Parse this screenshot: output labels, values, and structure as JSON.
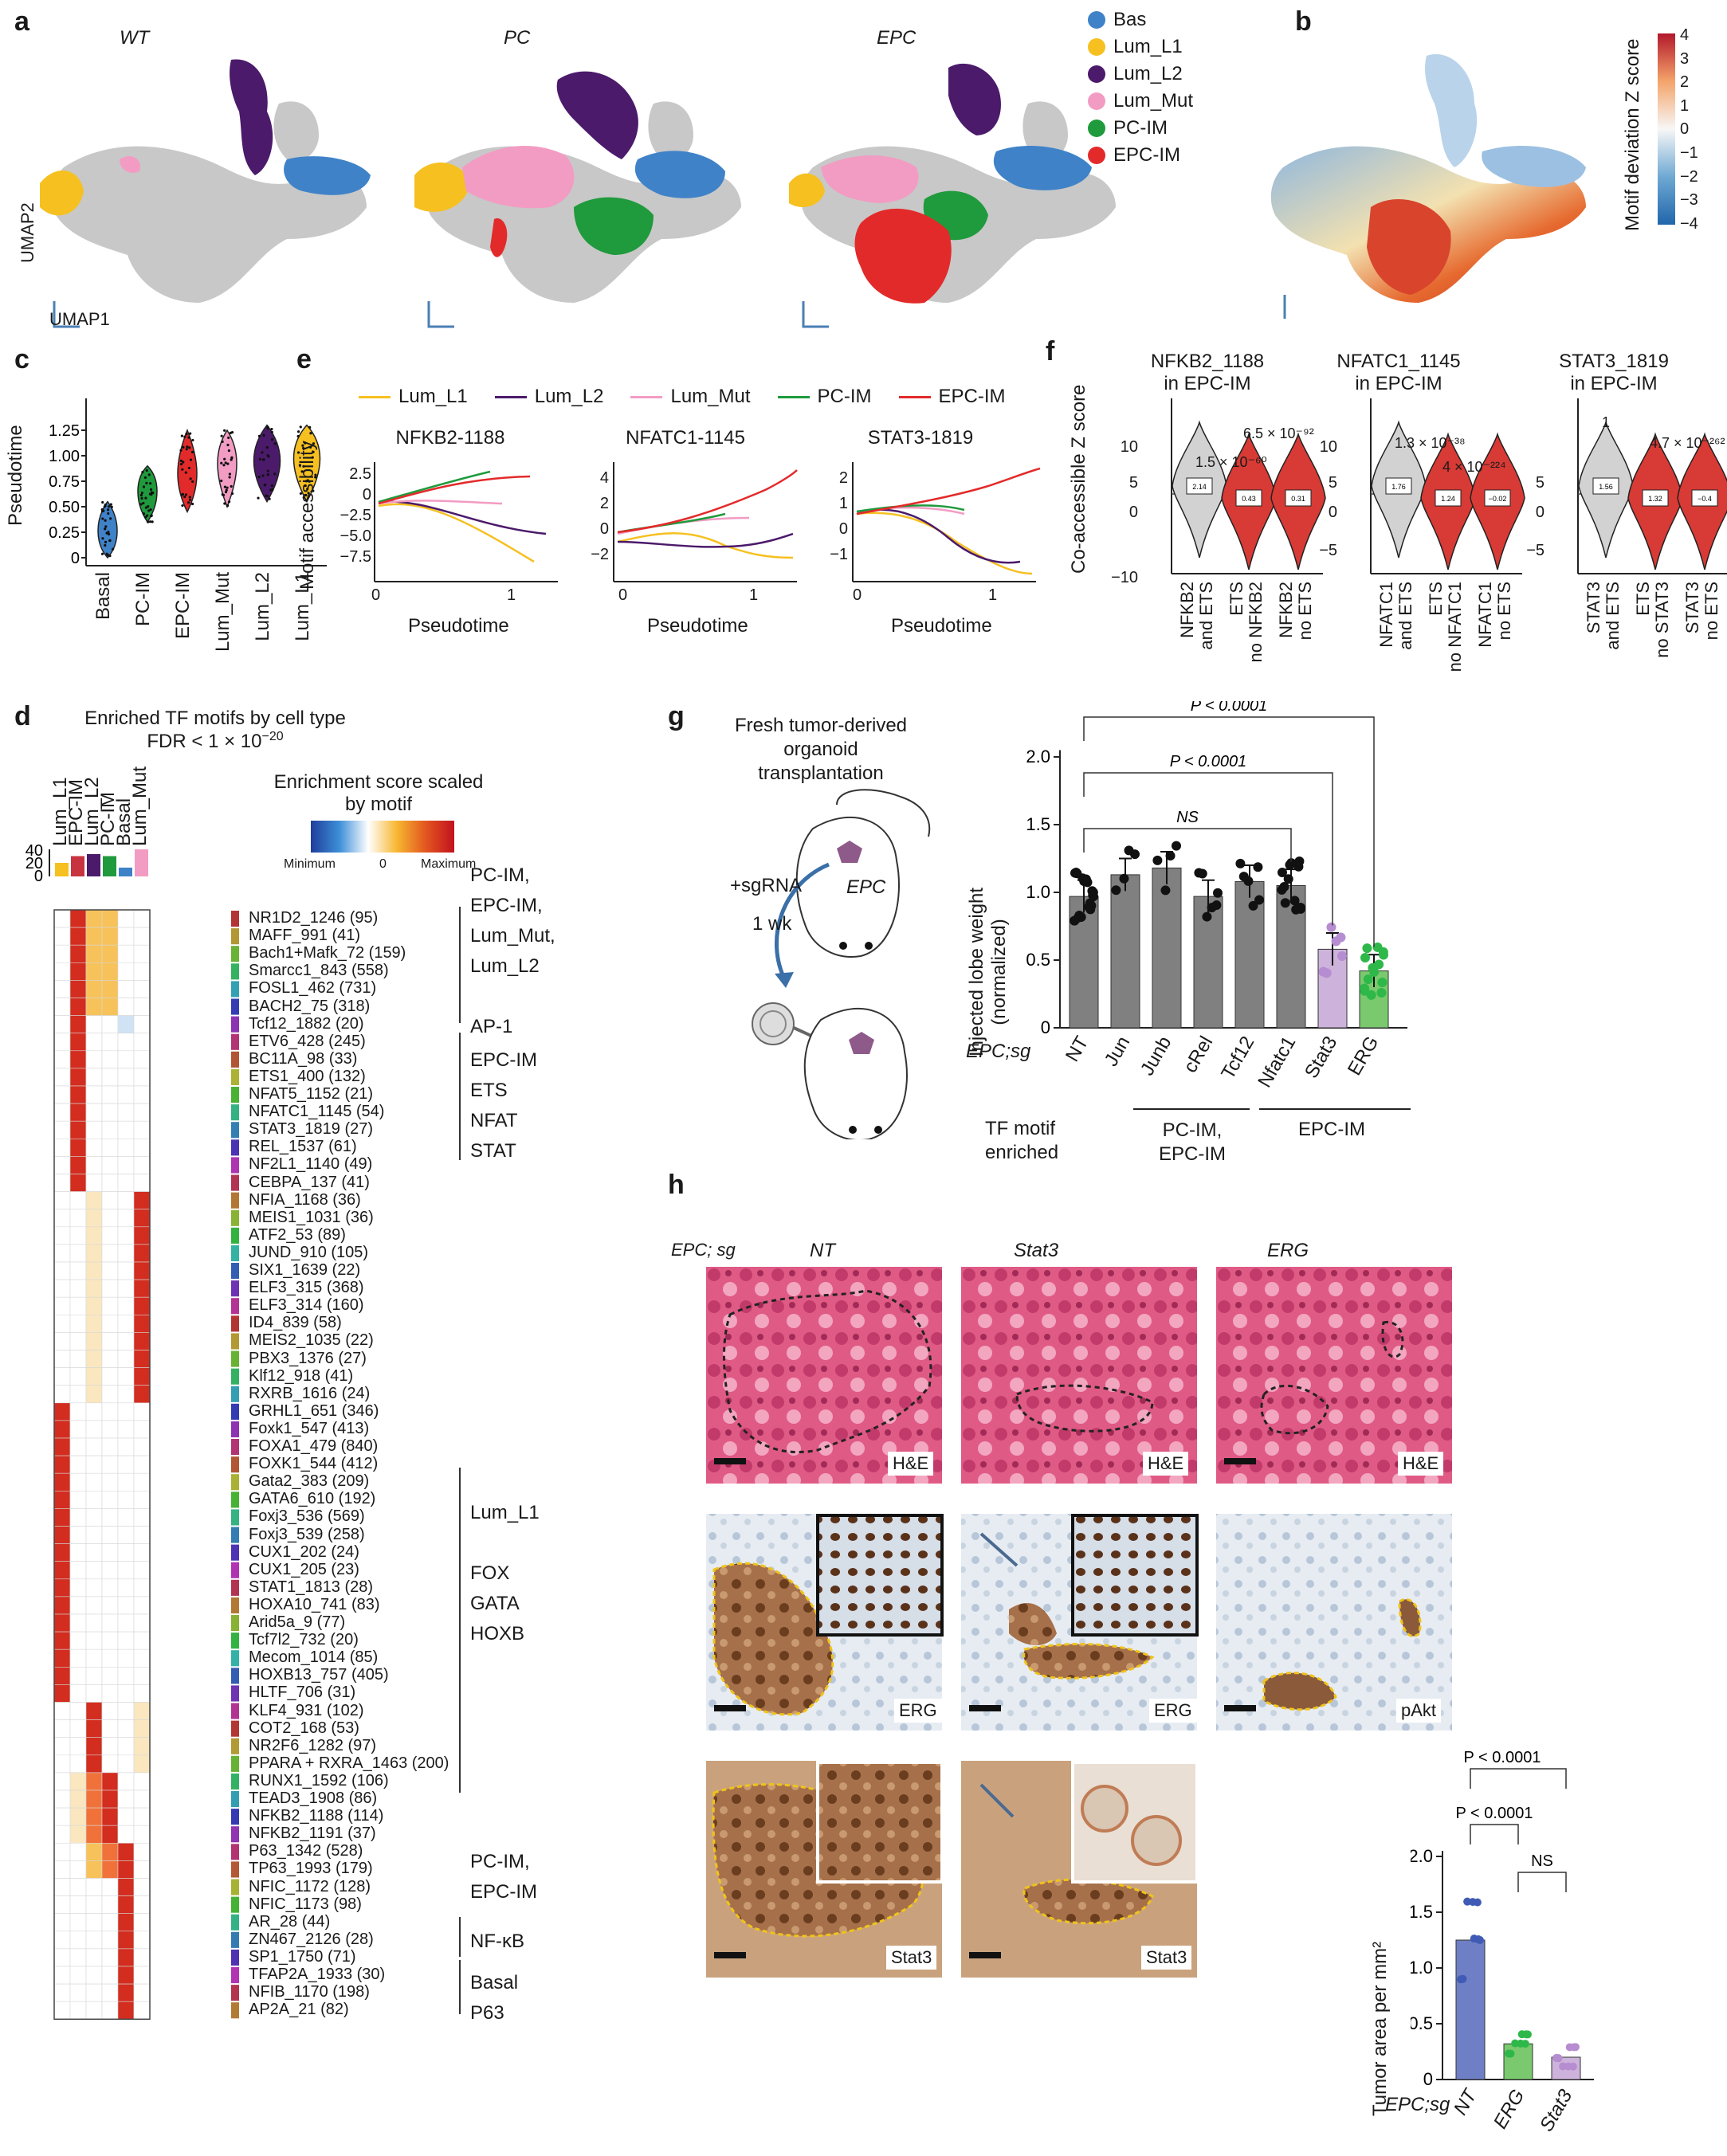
{
  "panel_letters": {
    "a": "a",
    "b": "b",
    "c": "c",
    "d": "d",
    "e": "e",
    "f": "f",
    "g": "g",
    "h": "h"
  },
  "umap": {
    "titles": [
      "WT",
      "PC",
      "EPC"
    ],
    "axis_y": "UMAP2",
    "axis_x": "UMAP1"
  },
  "cell_types": [
    {
      "name": "Bas",
      "color": "#3f82c8"
    },
    {
      "name": "Lum_L1",
      "color": "#f6c021"
    },
    {
      "name": "Lum_L2",
      "color": "#4b1a6b"
    },
    {
      "name": "Lum_Mut",
      "color": "#f29cc3"
    },
    {
      "name": "PC-IM",
      "color": "#1f9a3c"
    },
    {
      "name": "EPC-IM",
      "color": "#e32a2a"
    }
  ],
  "b": {
    "colorbar_label": "Motif deviation Z score",
    "ticks": [
      "4",
      "3",
      "2",
      "1",
      "0",
      "−1",
      "−2",
      "−3",
      "−4"
    ]
  },
  "c": {
    "ylabel": "Pseudotime",
    "yticks": [
      "0",
      "0.25",
      "0.50",
      "0.75",
      "1.00",
      "1.25"
    ],
    "categories": [
      "Basal",
      "PC-IM",
      "EPC-IM",
      "Lum_Mut",
      "Lum_L2",
      "Lum_L1"
    ],
    "colors": [
      "#3f82c8",
      "#1f9a3c",
      "#e32a2a",
      "#f29cc3",
      "#4b1a6b",
      "#f6c021"
    ],
    "medians": [
      0.22,
      0.62,
      0.78,
      0.9,
      0.92,
      0.95
    ]
  },
  "e": {
    "legend": [
      "Lum_L1",
      "Lum_L2",
      "Lum_Mut",
      "PC-IM",
      "EPC-IM"
    ],
    "ylabel": "Motif accessibility",
    "xlabel": "Pseudotime",
    "panels": [
      {
        "title": "NFKB2-1188",
        "yticks": [
          "2.5",
          "0",
          "−2.5",
          "−5.0",
          "−7.5"
        ],
        "xticks": [
          "0",
          "1"
        ]
      },
      {
        "title": "NFATC1-1145",
        "yticks": [
          "4",
          "2",
          "0",
          "−2"
        ],
        "xticks": [
          "0",
          "1"
        ]
      },
      {
        "title": "STAT3-1819",
        "yticks": [
          "2",
          "1",
          "0",
          "−1"
        ],
        "xticks": [
          "0",
          "1"
        ]
      }
    ]
  },
  "f": {
    "ylabel": "Co-accessible Z score",
    "panels": [
      {
        "title1": "NFKB2_1188",
        "title2": "in EPC-IM",
        "yticks": [
          "10",
          "5",
          "0",
          "−10"
        ],
        "xlabels": [
          "NFKB2\nand ETS",
          "ETS\nno NFKB2",
          "NFKB2\nno ETS"
        ],
        "medians": [
          "2.14",
          "0.43",
          "0.31"
        ],
        "p1": "1.5 × 10⁻⁶⁰",
        "p2": "6.5 × 10⁻⁹²"
      },
      {
        "title1": "NFATC1_1145",
        "title2": "in EPC-IM",
        "yticks": [
          "10",
          "5",
          "0",
          "−5"
        ],
        "xlabels": [
          "NFATC1\nand ETS",
          "ETS\nno NFATC1",
          "NFATC1\nno ETS"
        ],
        "medians": [
          "1.76",
          "1.24",
          "−0.02"
        ],
        "p1": "1.3 × 10⁻³⁸",
        "p2": "4 × 10⁻²²⁴"
      },
      {
        "title1": "STAT3_1819",
        "title2": "in EPC-IM",
        "yticks": [
          "5",
          "0",
          "−5"
        ],
        "xlabels": [
          "STAT3\nand ETS",
          "ETS\nno STAT3",
          "STAT3\nno ETS"
        ],
        "medians": [
          "1.56",
          "1.32",
          "−0.4"
        ],
        "p1": "1",
        "p2": "4.7 × 10⁻²⁶²"
      }
    ]
  },
  "d": {
    "title": "Enriched TF motifs by cell type",
    "fdr": "FDR < 1 × 10",
    "fdr_exp": "−20",
    "columns": [
      "Lum_L1",
      "EPC-IM",
      "Lum_L2",
      "PC-IM",
      "Basal",
      "Lum_Mut"
    ],
    "col_colors": [
      "#f6c021",
      "#c7343f",
      "#4b1a6b",
      "#1f9a3c",
      "#3f82c8",
      "#f29cc3"
    ],
    "bar_values": [
      20,
      30,
      33,
      30,
      13,
      40
    ],
    "bar_yticks": [
      "40",
      "20",
      "0"
    ],
    "scale_title": "Enrichment score scaled by motif",
    "scale_min": "Minimum",
    "scale_zero": "0",
    "scale_max": "Maximum",
    "motifs": [
      "NR1D2_1246 (95)",
      "MAFF_991 (41)",
      "Bach1+Mafk_72 (159)",
      "Smarcc1_843 (558)",
      "FOSL1_462 (731)",
      "BACH2_75 (318)",
      "Tcf12_1882 (20)",
      "ETV6_428 (245)",
      "BC11A_98 (33)",
      "ETS1_400 (132)",
      "NFAT5_1152 (21)",
      "NFATC1_1145 (54)",
      "STAT3_1819 (27)",
      "REL_1537 (61)",
      "NF2L1_1140 (49)",
      "CEBPA_137 (41)",
      "NFIA_1168 (36)",
      "MEIS1_1031 (36)",
      "ATF2_53 (89)",
      "JUND_910 (105)",
      "SIX1_1639 (22)",
      "ELF3_315 (368)",
      "ELF3_314 (160)",
      "ID4_839 (58)",
      "MEIS2_1035 (22)",
      "PBX3_1376 (27)",
      "Klf12_918 (41)",
      "RXRB_1616 (24)",
      "GRHL1_651 (346)",
      "Foxk1_547 (413)",
      "FOXA1_479 (840)",
      "FOXK1_544 (412)",
      "Gata2_383 (209)",
      "GATA6_610 (192)",
      "Foxj3_536 (569)",
      "Foxj3_539 (258)",
      "CUX1_202 (24)",
      "CUX1_205 (23)",
      "STAT1_1813 (28)",
      "HOXA10_741 (83)",
      "Arid5a_9 (77)",
      "Tcf7l2_732 (20)",
      "Mecom_1014 (85)",
      "HOXB13_757 (405)",
      "HLTF_706 (31)",
      "KLF4_931 (102)",
      "COT2_168 (53)",
      "NR2F6_1282 (97)",
      "PPARA + RXRA_1463 (200)",
      "RUNX1_1592 (106)",
      "TEAD3_1908 (86)",
      "NFKB2_1188 (114)",
      "NFKB2_1191 (37)",
      "P63_1342 (528)",
      "TP63_1993 (179)",
      "NFIC_1172 (128)",
      "NFIC_1173 (98)",
      "AR_28 (44)",
      "ZN467_2126 (28)",
      "SP1_1750 (71)",
      "TFAP2A_1933 (30)",
      "NFIB_1170 (198)",
      "AP2A_21 (82)"
    ],
    "group_labels": [
      {
        "lines": [
          "PC-IM,",
          "EPC-IM,",
          "Lum_Mut,",
          "Lum_L2",
          "",
          "AP-1"
        ]
      },
      {
        "lines": [
          "EPC-IM",
          "ETS",
          "NFAT",
          "STAT"
        ]
      },
      {
        "lines": [
          "Lum_L1",
          "",
          "FOX",
          "GATA",
          "HOXB"
        ]
      },
      {
        "lines": [
          "PC-IM,",
          "EPC-IM"
        ]
      },
      {
        "lines": [
          "NF-κB"
        ]
      },
      {
        "lines": [
          "Basal",
          "P63"
        ]
      }
    ]
  },
  "g": {
    "diagram_title": [
      "Fresh tumor-derived",
      "organoid",
      "transplantation"
    ],
    "sgrna": "+sgRNA",
    "week": "1 wk",
    "epc": "EPC",
    "ylabel": [
      "Injected lobe weight",
      "(normalized)"
    ],
    "yticks": [
      "2.0",
      "1.5",
      "1.0",
      "0.5",
      "0"
    ],
    "row_label": "EPC;sg",
    "categories": [
      "NT",
      "Jun",
      "Junb",
      "cRel",
      "Tcf12",
      "Nfatc1",
      "Stat3",
      "ERG"
    ],
    "values": [
      0.97,
      1.13,
      1.18,
      0.97,
      1.08,
      1.05,
      0.58,
      0.42
    ],
    "colors": [
      "#808080",
      "#808080",
      "#808080",
      "#808080",
      "#808080",
      "#808080",
      "#cdb3dc",
      "#7ac96f"
    ],
    "sig": [
      {
        "text": "P < 0.0001"
      },
      {
        "text": "P < 0.0001"
      },
      {
        "text": "NS"
      }
    ],
    "tf_row": "TF motif",
    "tf_row2": "enriched",
    "groups": [
      "PC-IM,",
      "EPC-IM",
      "EPC-IM"
    ]
  },
  "h": {
    "row_label": "EPC; sg",
    "cols": [
      "NT",
      "Stat3",
      "ERG"
    ],
    "image_labels": [
      "H&E",
      "H&E",
      "H&E",
      "ERG",
      "ERG",
      "pAkt",
      "Stat3",
      "Stat3"
    ],
    "bar": {
      "ylabel": "Tumor area per mm²",
      "yticks": [
        "2.0",
        "1.5",
        "1.0",
        "0.5",
        "0"
      ],
      "categories": [
        "NT",
        "ERG",
        "Stat3"
      ],
      "values": [
        1.25,
        0.32,
        0.2
      ],
      "colors": [
        "#6f7fc5",
        "#7ac96f",
        "#cdb3dc"
      ],
      "xrow": "EPC;sg",
      "sig": [
        "P < 0.0001",
        "P < 0.0001",
        "NS"
      ]
    }
  }
}
